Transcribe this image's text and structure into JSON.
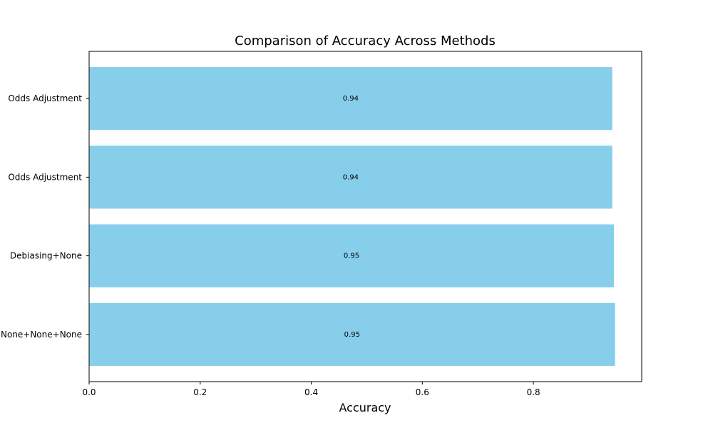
{
  "chart_data": {
    "type": "bar",
    "orientation": "horizontal",
    "title": "Comparison of Accuracy Across Methods",
    "xlabel": "Accuracy",
    "ylabel": "",
    "categories": [
      "None+None+None",
      "Debiasing+None",
      "Odds Adjustment",
      "Odds Adjustment"
    ],
    "values": [
      0.947,
      0.945,
      0.942,
      0.942
    ],
    "value_labels": [
      "0.95",
      "0.95",
      "0.94",
      "0.94"
    ],
    "xlim": [
      0,
      0.995
    ],
    "xticks": [
      0.0,
      0.2,
      0.4,
      0.6,
      0.8
    ],
    "xtick_labels": [
      "0.0",
      "0.2",
      "0.4",
      "0.6",
      "0.8"
    ],
    "bar_color": "#87CEEB",
    "grid": false,
    "legend": "none"
  }
}
